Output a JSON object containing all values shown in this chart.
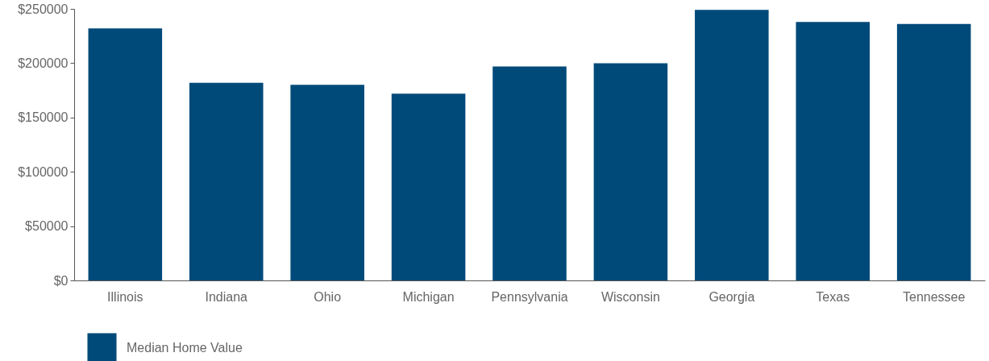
{
  "chart_data": {
    "type": "bar",
    "categories": [
      "Illinois",
      "Indiana",
      "Ohio",
      "Michigan",
      "Pennsylvania",
      "Wisconsin",
      "Georgia",
      "Texas",
      "Tennessee"
    ],
    "series": [
      {
        "name": "Median Home Value",
        "color": "#004a7a",
        "values": [
          232000,
          182000,
          180000,
          172000,
          197000,
          200000,
          249000,
          238000,
          236000
        ]
      }
    ],
    "ylim": [
      0,
      250000
    ],
    "yticks": [
      {
        "value": 0,
        "label": "$0"
      },
      {
        "value": 50000,
        "label": "$50000"
      },
      {
        "value": 100000,
        "label": "$100000"
      },
      {
        "value": 150000,
        "label": "$150000"
      },
      {
        "value": 200000,
        "label": "$200000"
      },
      {
        "value": 250000,
        "label": "$250000"
      }
    ],
    "grid": false,
    "legend": "bottom left"
  }
}
